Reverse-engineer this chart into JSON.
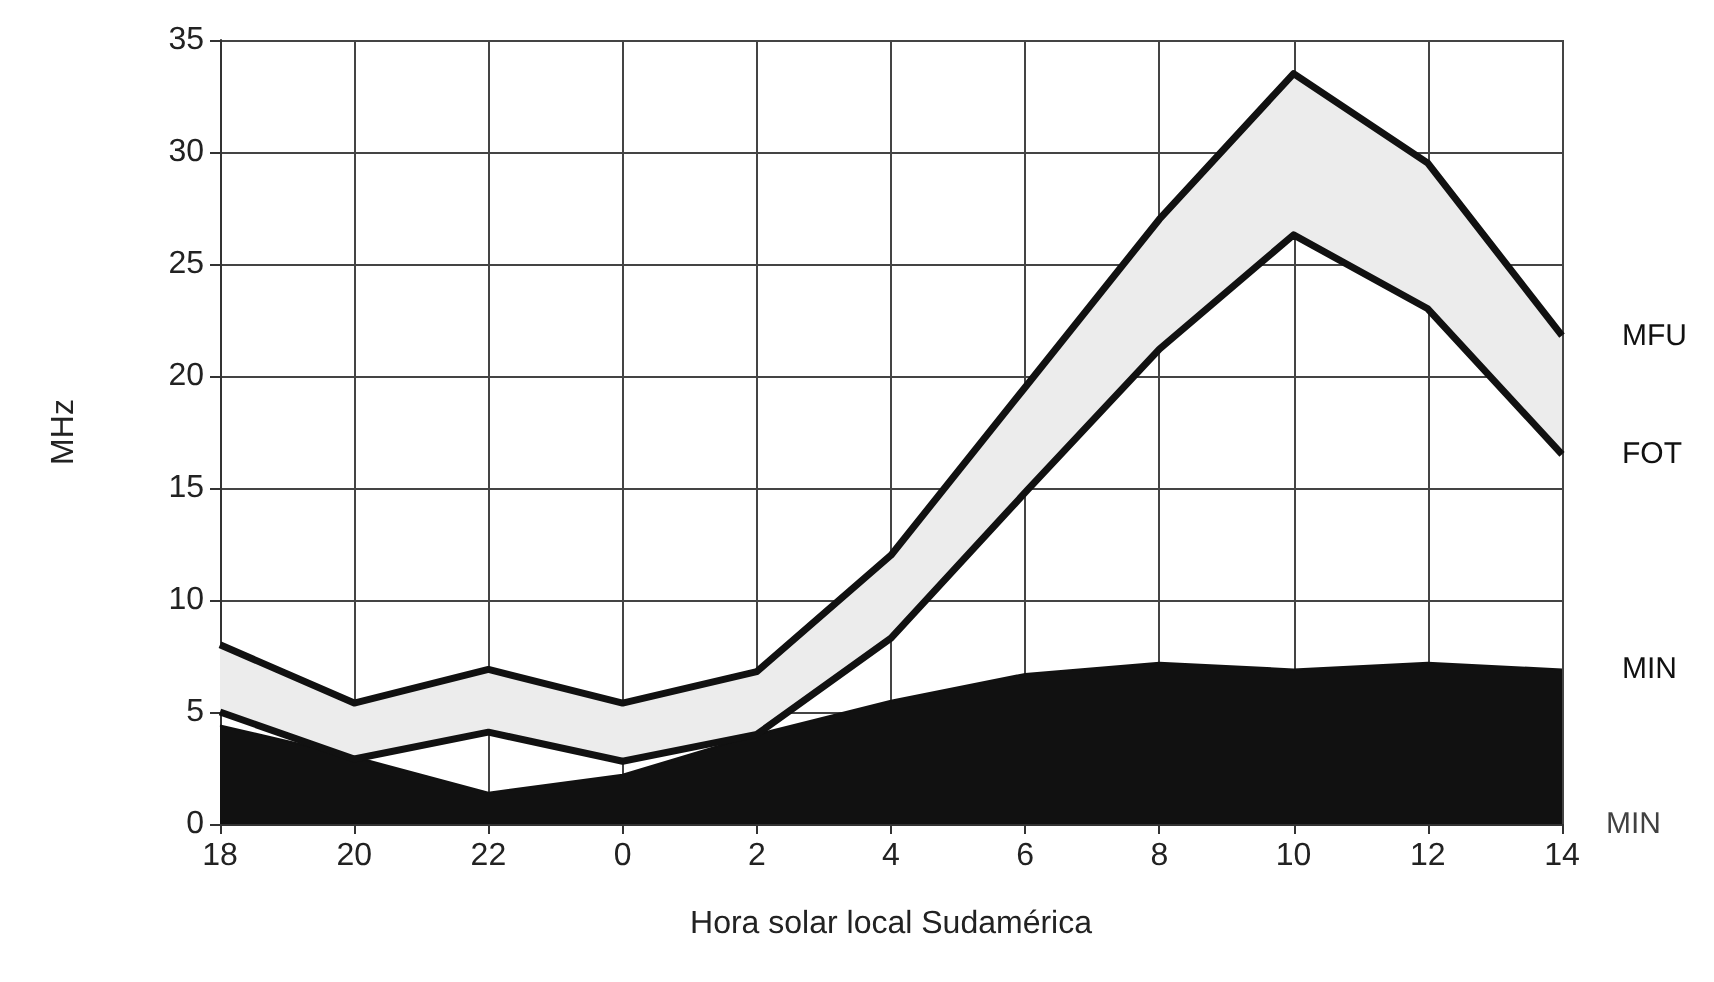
{
  "chart_data": {
    "type": "line",
    "xlabel": "Hora solar local Sudamérica",
    "ylabel": "MHz",
    "categories": [
      "18",
      "20",
      "22",
      "0",
      "2",
      "4",
      "6",
      "8",
      "10",
      "12",
      "14"
    ],
    "series": [
      {
        "name": "MFU",
        "color": "#111111",
        "values": [
          8.0,
          5.4,
          6.9,
          5.4,
          6.8,
          12,
          19.5,
          27,
          33.5,
          29.5,
          21.8
        ],
        "lower": [
          5.0,
          2.9,
          4.1,
          2.8,
          4.0,
          8.3,
          14.8,
          21.2,
          26.3,
          23,
          16.5
        ],
        "upper": [
          8.0,
          5.4,
          6.9,
          5.4,
          6.8,
          12,
          19.5,
          27,
          33.5,
          29.5,
          21.8
        ]
      },
      {
        "name": "FOT",
        "color": "#111111",
        "values": [
          5.0,
          2.9,
          4.1,
          2.8,
          4.0,
          8.3,
          14.8,
          21.2,
          26.3,
          23,
          16.5
        ]
      },
      {
        "name": "MIN",
        "type": "area",
        "color": "#111111",
        "values": [
          4.4,
          3.0,
          1.4,
          2.2,
          4.0,
          5.5,
          6.7,
          7.2,
          6.9,
          7.2,
          6.9
        ]
      }
    ],
    "annotations": [
      {
        "text": "MIN",
        "x": "14",
        "y": 0
      }
    ],
    "ylim": [
      0,
      35
    ],
    "yticks": [
      0,
      5,
      10,
      15,
      20,
      25,
      30,
      35
    ],
    "grid": true,
    "legend": false,
    "marker": "none",
    "line_style": "solid"
  }
}
